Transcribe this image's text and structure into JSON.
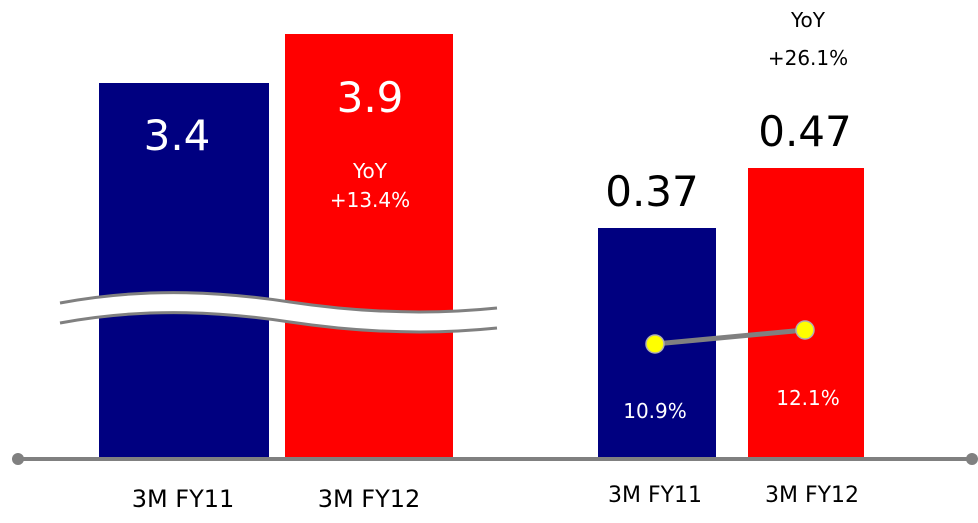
{
  "chart_data": [
    {
      "type": "bar",
      "categories": [
        "3M FY11",
        "3M FY12"
      ],
      "values": [
        3.4,
        3.9
      ],
      "value_labels": [
        "3.4",
        "3.9"
      ],
      "yoy": {
        "label": "YoY",
        "value": "+13.4%"
      },
      "broken_axis": true,
      "colors": [
        "#000080",
        "#ff0000"
      ]
    },
    {
      "type": "bar",
      "categories": [
        "3M FY11",
        "3M FY12"
      ],
      "values": [
        0.37,
        0.47
      ],
      "value_labels": [
        "0.37",
        "0.47"
      ],
      "yoy": {
        "label": "YoY",
        "value": "+26.1%"
      },
      "colors": [
        "#000080",
        "#ff0000"
      ],
      "line_series": {
        "values": [
          10.9,
          12.1
        ],
        "labels": [
          "10.9%",
          "12.1%"
        ],
        "marker_color": "#ffff00",
        "line_color": "#808080"
      }
    }
  ],
  "colors": {
    "axis": "#808080",
    "navy": "#000080",
    "red": "#ff0000"
  }
}
